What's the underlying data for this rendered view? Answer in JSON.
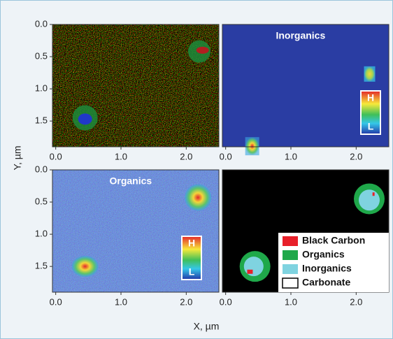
{
  "figure": {
    "xlabel": "X, µm",
    "ylabel": "Y, µm"
  },
  "chart_data": [
    {
      "type": "image",
      "xlim": [
        -0.05,
        2.5
      ],
      "ylim": [
        1.9,
        0
      ],
      "xticks": [
        {
          "value": 0,
          "label": "0.0"
        },
        {
          "value": 1,
          "label": "1.0"
        },
        {
          "value": 2,
          "label": "2.0"
        }
      ],
      "yticks": [
        {
          "value": 0,
          "label": "0.0"
        },
        0.5,
        {
          "value": 1,
          "label": "1.0"
        },
        1.5
      ]
    },
    {
      "type": "image",
      "title": "Inorganics",
      "xlim": [
        -0.05,
        2.5
      ],
      "ylim": [
        1.9,
        0
      ],
      "xticks": [
        {
          "value": 0,
          "label": "0.0"
        },
        {
          "value": 1,
          "label": "1.0"
        },
        {
          "value": 2,
          "label": "2.0"
        }
      ],
      "colorbar": {
        "high": "H",
        "low": "L"
      }
    },
    {
      "type": "image",
      "title": "Organics",
      "xlim": [
        -0.05,
        2.5
      ],
      "ylim": [
        1.9,
        0
      ],
      "xticks": [
        {
          "value": 0,
          "label": "0.0"
        },
        {
          "value": 1,
          "label": "1.0"
        },
        {
          "value": 2,
          "label": "2.0"
        }
      ],
      "yticks": [
        {
          "value": 0,
          "label": "0.0"
        },
        0.5,
        {
          "value": 1,
          "label": "1.0"
        },
        1.5
      ],
      "colorbar": {
        "high": "H",
        "low": "L"
      }
    },
    {
      "type": "image",
      "xlim": [
        -0.05,
        2.5
      ],
      "ylim": [
        1.9,
        0
      ],
      "xticks": [
        {
          "value": 0,
          "label": "0.0"
        },
        {
          "value": 1,
          "label": "1.0"
        },
        {
          "value": 2,
          "label": "2.0"
        }
      ],
      "legend": [
        {
          "name": "Black Carbon",
          "color": "#e8202a"
        },
        {
          "name": "Organics",
          "color": "#1fa84a"
        },
        {
          "name": "Inorganics",
          "color": "#7fd3e0"
        },
        {
          "name": "Carbonate",
          "color": "#ffffff"
        }
      ]
    }
  ]
}
